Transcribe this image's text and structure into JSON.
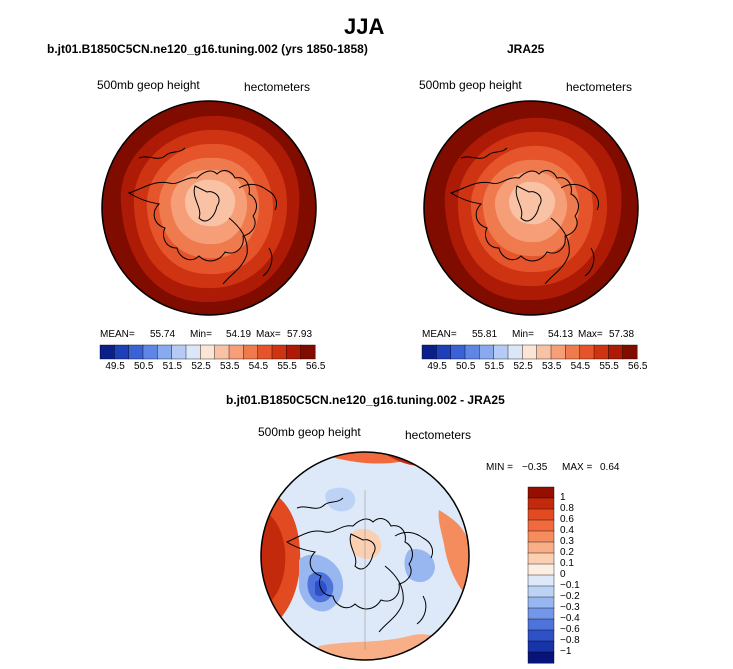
{
  "figure": {
    "title": "JJA"
  },
  "panels": [
    {
      "title": "b.jt01.B1850C5CN.ne120_g16.tuning.002 (yrs 1850-1858)",
      "variable_label": "500mb geop height",
      "units_label": "hectometers",
      "stats": {
        "mean_label": "MEAN=",
        "mean": "55.74",
        "min_label": "Min=",
        "min": "54.19",
        "max_label": "Max=",
        "max": "57.93"
      }
    },
    {
      "title": "JRA25",
      "variable_label": "500mb geop height",
      "units_label": "hectometers",
      "stats": {
        "mean_label": "MEAN=",
        "mean": "55.81",
        "min_label": "Min=",
        "min": "54.13",
        "max_label": "Max=",
        "max": "57.38"
      }
    },
    {
      "title": "b.jt01.B1850C5CN.ne120_g16.tuning.002 - JRA25",
      "variable_label": "500mb geop height",
      "units_label": "hectometers",
      "stats": {
        "min_label": "MIN =",
        "min": "−0.35",
        "max_label": "MAX =",
        "max": "0.64"
      }
    }
  ],
  "chart_data": [
    {
      "type": "heatmap",
      "projection": "north-polar-stereographic",
      "title": "b.jt01.B1850C5CN.ne120_g16.tuning.002 (yrs 1850-1858)",
      "field": "500mb geop height",
      "units": "hectometers",
      "mean": 55.74,
      "min": 54.19,
      "max": 57.93,
      "colorbar": {
        "orientation": "horizontal",
        "levels": [
          49.5,
          50.5,
          51.5,
          52.5,
          53.5,
          54.5,
          55.5,
          56.5
        ],
        "level_labels": [
          "49.5",
          "50.5",
          "51.5",
          "52.5",
          "53.5",
          "54.5",
          "55.5",
          "56.5"
        ],
        "colors": [
          "#0b1f8a",
          "#1f3fb8",
          "#3a62d6",
          "#5f86e6",
          "#8aaaf0",
          "#b5cbf5",
          "#dbe6f8",
          "#fde5d6",
          "#f9c2a4",
          "#f59e78",
          "#ef7a4e",
          "#e5542a",
          "#cf3412",
          "#ad1a06",
          "#800c00"
        ]
      }
    },
    {
      "type": "heatmap",
      "projection": "north-polar-stereographic",
      "title": "JRA25",
      "field": "500mb geop height",
      "units": "hectometers",
      "mean": 55.81,
      "min": 54.13,
      "max": 57.38,
      "colorbar": {
        "orientation": "horizontal",
        "levels": [
          49.5,
          50.5,
          51.5,
          52.5,
          53.5,
          54.5,
          55.5,
          56.5
        ],
        "level_labels": [
          "49.5",
          "50.5",
          "51.5",
          "52.5",
          "53.5",
          "54.5",
          "55.5",
          "56.5"
        ],
        "colors": [
          "#0b1f8a",
          "#1f3fb8",
          "#3a62d6",
          "#5f86e6",
          "#8aaaf0",
          "#b5cbf5",
          "#dbe6f8",
          "#fde5d6",
          "#f9c2a4",
          "#f59e78",
          "#ef7a4e",
          "#e5542a",
          "#cf3412",
          "#ad1a06",
          "#800c00"
        ]
      }
    },
    {
      "type": "heatmap",
      "projection": "north-polar-stereographic",
      "title": "b.jt01.B1850C5CN.ne120_g16.tuning.002 - JRA25",
      "field": "500mb geop height",
      "units": "hectometers",
      "min": -0.35,
      "max": 0.64,
      "colorbar": {
        "orientation": "vertical",
        "levels": [
          1,
          0.8,
          0.6,
          0.4,
          0.3,
          0.2,
          0.1,
          0,
          -0.1,
          -0.2,
          -0.3,
          -0.4,
          -0.6,
          -0.8,
          -1
        ],
        "level_labels": [
          "1",
          "0.8",
          "0.6",
          "0.4",
          "0.3",
          "0.2",
          "0.1",
          "0",
          "−0.1",
          "−0.2",
          "−0.3",
          "−0.4",
          "−0.6",
          "−0.8",
          "−1"
        ],
        "colors": [
          "#960e00",
          "#c32a0c",
          "#e24a22",
          "#f06a3e",
          "#f58c5e",
          "#f8ae86",
          "#fbcfb2",
          "#fdeee2",
          "#dde9f9",
          "#bcd3f6",
          "#98b7f0",
          "#7397e8",
          "#4e74dc",
          "#2e51c8",
          "#1633a8",
          "#08137a"
        ]
      }
    }
  ]
}
